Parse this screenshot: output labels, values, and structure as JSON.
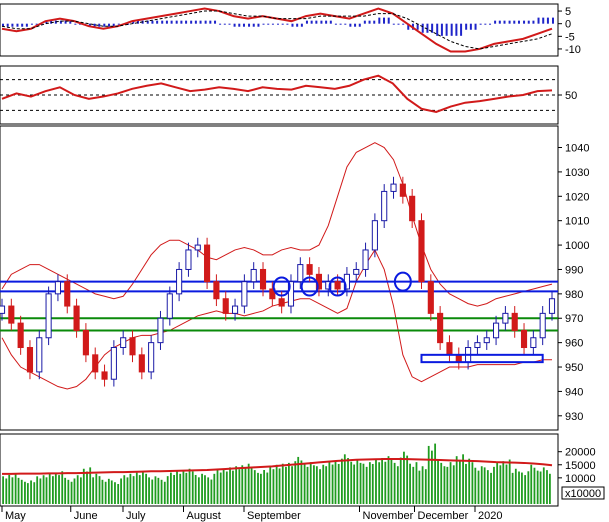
{
  "colors": {
    "background": "#ffffff",
    "price_up": "#1a1aa6",
    "price_down": "#d11a1a",
    "bollinger": "#d11a1a",
    "support_resistance_blue": "#0a1adf",
    "support_resistance_green": "#0a8a0a",
    "volume_bar": "#1f9c1f",
    "volume_ma": "#d11a1a",
    "macd_hist": "#1e24c9",
    "macd_line": "#d11a1a",
    "macd_signal": "#000000",
    "rsi_line": "#d11a1a",
    "grid_dashed": "#000000"
  },
  "chart_data": [
    {
      "type": "line",
      "panel": "macd",
      "ylim": [
        -12,
        7
      ],
      "yticks": [
        "5",
        "0",
        "-5",
        "-10"
      ],
      "ytick_values": [
        5,
        0,
        -5,
        -10
      ],
      "series": [
        {
          "role": "macd",
          "values": [
            -2,
            -3,
            -2,
            1,
            2,
            1,
            -1,
            -2,
            -1,
            1,
            2,
            3,
            4,
            5,
            6,
            5,
            3,
            2,
            3,
            2,
            1,
            3,
            4,
            3,
            2,
            4,
            6,
            4,
            0,
            -4,
            -8,
            -11,
            -11,
            -10,
            -8,
            -7,
            -6,
            -4,
            -2
          ]
        },
        {
          "role": "signal",
          "values": [
            -1,
            -2,
            -2,
            0,
            1,
            1,
            0,
            -1,
            -1,
            0,
            1,
            2,
            3,
            4,
            5,
            5,
            4,
            3,
            3,
            2,
            2,
            2,
            3,
            3,
            3,
            3,
            4,
            4,
            2,
            -1,
            -4,
            -7,
            -9,
            -10,
            -9,
            -8,
            -7,
            -6,
            -4
          ]
        }
      ]
    },
    {
      "type": "line",
      "panel": "rsi",
      "ylim": [
        15,
        85
      ],
      "yticks": [
        "50"
      ],
      "ytick_values": [
        50
      ],
      "guides": [
        30,
        50,
        70
      ],
      "series": [
        {
          "role": "rsi",
          "values": [
            45,
            52,
            48,
            55,
            60,
            50,
            45,
            48,
            52,
            58,
            62,
            65,
            60,
            55,
            57,
            60,
            58,
            55,
            60,
            58,
            57,
            62,
            60,
            58,
            62,
            70,
            75,
            65,
            45,
            32,
            28,
            35,
            40,
            42,
            45,
            48,
            50,
            55,
            56
          ]
        }
      ]
    },
    {
      "type": "candlestick",
      "panel": "price",
      "ylim": [
        925,
        1048
      ],
      "yticks": [
        "1040",
        "1030",
        "1020",
        "1010",
        "1000",
        "990",
        "980",
        "970",
        "960",
        "950",
        "940",
        "930"
      ],
      "ytick_values": [
        1040,
        1030,
        1020,
        1010,
        1000,
        990,
        980,
        970,
        960,
        950,
        940,
        930
      ],
      "close": [
        975,
        968,
        958,
        948,
        962,
        980,
        985,
        975,
        965,
        955,
        948,
        945,
        958,
        962,
        955,
        948,
        960,
        970,
        980,
        990,
        998,
        1000,
        985,
        978,
        972,
        975,
        985,
        990,
        982,
        978,
        975,
        985,
        992,
        988,
        982,
        985,
        982,
        988,
        990,
        998,
        1010,
        1022,
        1025,
        1020,
        1010,
        985,
        972,
        960,
        955,
        952,
        958,
        960,
        962,
        968,
        972,
        965,
        958,
        962,
        972,
        978
      ],
      "bollinger_upper": [
        982,
        988,
        990,
        992,
        992,
        990,
        988,
        986,
        984,
        982,
        980,
        979,
        978,
        979,
        984,
        990,
        996,
        1000,
        1002,
        1002,
        1000,
        998,
        995,
        994,
        996,
        998,
        999,
        998,
        996,
        996,
        998,
        999,
        998,
        998,
        1000,
        1008,
        1020,
        1032,
        1038,
        1040,
        1042,
        1040,
        1035,
        1025,
        1012,
        1000,
        990,
        984,
        980,
        978,
        976,
        975,
        976,
        978,
        979,
        980,
        981,
        982,
        983,
        984
      ],
      "bollinger_lower": [
        962,
        955,
        950,
        948,
        946,
        944,
        942,
        941,
        942,
        945,
        950,
        955,
        958,
        960,
        962,
        963,
        963,
        964,
        965,
        967,
        969,
        971,
        972,
        973,
        972,
        972,
        971,
        972,
        973,
        975,
        976,
        977,
        978,
        978,
        976,
        974,
        972,
        974,
        985,
        992,
        998,
        990,
        975,
        955,
        946,
        944,
        946,
        948,
        950,
        950,
        950,
        951,
        951,
        951,
        951,
        951,
        952,
        952,
        953,
        953
      ],
      "reference_lines": [
        {
          "value": 985,
          "color": "blue"
        },
        {
          "value": 981,
          "color": "blue"
        },
        {
          "value": 970,
          "color": "green"
        },
        {
          "value": 965,
          "color": "green"
        }
      ],
      "highlight_box": {
        "from": 952,
        "to": 955
      },
      "circle_marks": [
        {
          "price": 983,
          "label": "circle-mark"
        },
        {
          "price": 983,
          "label": "circle-mark"
        },
        {
          "price": 983,
          "label": "circle-mark"
        },
        {
          "price": 985,
          "label": "circle-mark"
        }
      ]
    },
    {
      "type": "bar",
      "panel": "volume",
      "ylim": [
        0,
        26000
      ],
      "yticks": [
        "20000",
        "15000",
        "10000"
      ],
      "ytick_values": [
        20000,
        15000,
        10000
      ],
      "unit_label": "x10000",
      "values": [
        11000,
        12000,
        10000,
        9000,
        11000,
        12000,
        13000,
        10000,
        11000,
        14000,
        12000,
        10000,
        9000,
        11000,
        12000,
        13000,
        11000,
        10000,
        12000,
        13000,
        14000,
        12000,
        11000,
        13000,
        14000,
        15000,
        16000,
        14000,
        13000,
        15000,
        16000,
        17000,
        18000,
        16000,
        15000,
        17000,
        18000,
        19000,
        17000,
        16000,
        18000,
        19000,
        17000,
        20000,
        16000,
        15000,
        24000,
        17000,
        16000,
        19000,
        18000,
        15000,
        14000,
        16000,
        17000,
        14000,
        13000,
        15000,
        14000,
        12000
      ],
      "moving_average": [
        11500,
        11500,
        11600,
        11600,
        11600,
        11700,
        11700,
        11800,
        11800,
        11900,
        12000,
        12100,
        12200,
        12200,
        12300,
        12400,
        12500,
        12500,
        12600,
        12700,
        12800,
        12900,
        13000,
        13200,
        13400,
        13600,
        13800,
        14000,
        14200,
        14400,
        14700,
        15000,
        15300,
        15600,
        15900,
        16200,
        16500,
        16700,
        16900,
        17000,
        17100,
        17200,
        17200,
        17200,
        17100,
        17000,
        16900,
        16800,
        16700,
        16600,
        16500,
        16400,
        16200,
        16000,
        15900,
        15800,
        15700,
        15500,
        15200,
        14800
      ]
    }
  ],
  "x_axis": {
    "months": [
      "May",
      "June",
      "July",
      "August",
      "September",
      "November",
      "December",
      "2020"
    ],
    "month_positions": [
      0.0,
      0.125,
      0.22,
      0.33,
      0.44,
      0.65,
      0.75,
      0.86
    ]
  }
}
